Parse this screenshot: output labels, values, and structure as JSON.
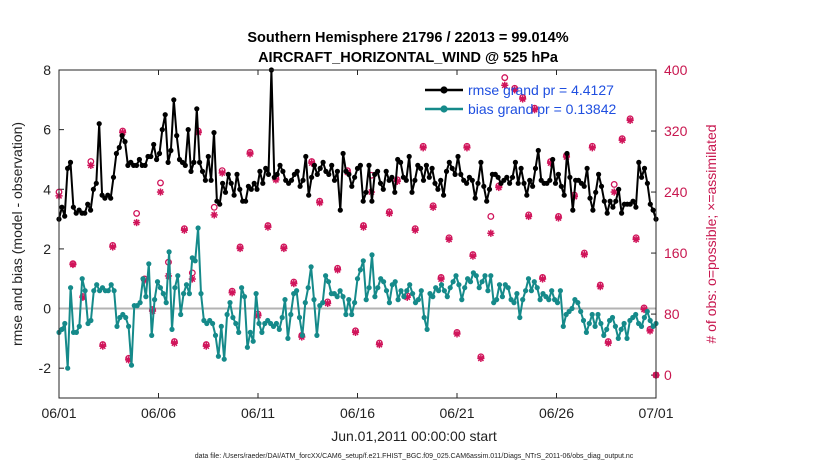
{
  "chart_data": {
    "type": "line",
    "title_line1": "Southern Hemisphere 21796 / 22013 = 99.014%",
    "title_line2": "AIRCRAFT_HORIZONTAL_WIND @ 525 hPa",
    "xlabel": "Jun.01,2011 00:00:00 start",
    "ylabel_left": "rmse and bias (model - observation)",
    "ylabel_right": "# of obs: o=possible; ×=assimilated",
    "footnote": "data file: /Users/raeder/DAI/ATM_forcXX/CAM6_setup/f.e21.FHIST_BGC.f09_025.CAM6assim.011/Diags_NTrS_2011-06/obs_diag_output.nc",
    "x_range_days": [
      0,
      30
    ],
    "ylim_left": [
      -3,
      8
    ],
    "ylim_right": [
      -30,
      400
    ],
    "yticks_left": [
      "-2",
      "0",
      "2",
      "4",
      "6",
      "8"
    ],
    "yticks_right": [
      "0",
      "80",
      "160",
      "240",
      "320",
      "400"
    ],
    "xticks": [
      {
        "day": 0,
        "label": "06/01"
      },
      {
        "day": 5,
        "label": "06/06"
      },
      {
        "day": 10,
        "label": "06/11"
      },
      {
        "day": 15,
        "label": "06/16"
      },
      {
        "day": 20,
        "label": "06/21"
      },
      {
        "day": 25,
        "label": "06/26"
      },
      {
        "day": 30,
        "label": "07/01"
      }
    ],
    "colors": {
      "rmse": "#000000",
      "bias": "#158a8a",
      "obs": "#d0145a",
      "zero_line": "#b3b3b3",
      "legend_text": "#1f4fe0"
    },
    "series": [
      {
        "name": "rmse grand pr = 4.4127",
        "values": [
          3.0,
          3.4,
          3.1,
          4.7,
          4.9,
          3.4,
          3.2,
          3.3,
          3.2,
          3.2,
          3.5,
          3.3,
          4.0,
          4.2,
          6.2,
          3.8,
          3.7,
          3.8,
          3.7,
          4.4,
          5.2,
          5.4,
          5.8,
          5.6,
          4.8,
          4.9,
          4.8,
          4.8,
          5.0,
          4.8,
          4.8,
          5.1,
          5.1,
          5.5,
          5.0,
          5.2,
          6.0,
          6.5,
          4.9,
          5.3,
          7.0,
          5.8,
          5.0,
          4.9,
          4.8,
          6.0,
          4.6,
          4.9,
          6.7,
          4.9,
          4.6,
          4.3,
          5.1,
          4.3,
          5.9,
          3.6,
          3.5,
          4.2,
          3.9,
          4.5,
          4.2,
          3.8,
          4.5,
          4.0,
          3.6,
          3.6,
          4.1,
          4.0,
          4.2,
          4.0,
          4.6,
          4.2,
          4.7,
          4.5,
          8.0,
          4.4,
          4.5,
          4.8,
          4.6,
          4.3,
          4.2,
          4.3,
          4.5,
          4.6,
          4.1,
          4.3,
          5.1,
          3.8,
          4.4,
          4.8,
          4.5,
          4.7,
          4.9,
          4.6,
          4.5,
          4.8,
          4.3,
          4.6,
          3.3,
          5.2,
          4.6,
          4.5,
          4.1,
          4.4,
          4.7,
          4.8,
          3.6,
          3.9,
          4.8,
          3.6,
          4.5,
          4.6,
          4.2,
          4.0,
          4.6,
          4.3,
          4.4,
          3.9,
          5.0,
          4.9,
          4.4,
          4.3,
          5.1,
          3.9,
          4.3,
          4.8,
          4.7,
          4.3,
          4.8,
          4.4,
          4.7,
          4.2,
          4.0,
          4.3,
          3.8,
          4.6,
          4.9,
          4.7,
          4.5,
          5.1,
          4.5,
          4.3,
          4.2,
          4.4,
          4.3,
          3.7,
          4.2,
          4.9,
          4.1,
          3.6,
          4.0,
          4.5,
          4.5,
          4.4,
          4.2,
          4.3,
          4.4,
          4.2,
          4.4,
          4.9,
          4.2,
          4.7,
          4.2,
          3.8,
          4.3,
          4.1,
          4.7,
          5.3,
          4.3,
          4.2,
          4.2,
          4.3,
          5.0,
          4.2,
          4.5,
          4.1,
          3.8,
          5.2,
          4.4,
          3.3,
          4.3,
          4.3,
          4.2,
          4.1,
          4.7,
          3.7,
          3.3,
          3.9,
          4.5,
          4.1,
          3.6,
          3.2,
          3.6,
          3.4,
          3.6,
          4.0,
          3.2,
          3.5,
          3.5,
          3.5,
          3.6,
          3.4,
          4.9,
          4.4,
          4.7,
          4.2,
          3.5,
          3.3,
          3.0
        ]
      },
      {
        "name": "bias grand pr = 0.13842",
        "values": [
          -0.8,
          -0.7,
          -0.5,
          -2.0,
          0.7,
          -0.8,
          -0.8,
          -0.6,
          1.0,
          0.6,
          -0.5,
          -0.4,
          0.6,
          0.8,
          0.6,
          0.7,
          0.6,
          0.6,
          0.8,
          0.6,
          -0.6,
          -0.3,
          -0.2,
          -0.3,
          -0.6,
          -1.9,
          0.1,
          0.1,
          0.2,
          1.0,
          0.4,
          1.5,
          -0.9,
          0.3,
          0.9,
          0.7,
          0.5,
          0.2,
          1.9,
          -0.7,
          0.7,
          1.1,
          -0.2,
          0.5,
          0.8,
          0.5,
          1.7,
          1.6,
          2.7,
          0.5,
          -0.4,
          -0.5,
          -0.4,
          -0.5,
          -0.9,
          -1.6,
          -0.6,
          -1.7,
          -0.2,
          0.2,
          -0.3,
          -0.5,
          -0.8,
          0.7,
          0.4,
          -1.3,
          -0.8,
          -1.1,
          0.5,
          -0.5,
          -0.8,
          -0.5,
          -0.4,
          -0.5,
          -0.6,
          -0.5,
          -0.7,
          -0.3,
          0.3,
          -1.0,
          -0.2,
          0.5,
          0.6,
          -0.3,
          -0.9,
          0.2,
          0.7,
          1.4,
          0.3,
          -0.9,
          0.1,
          0.2,
          1.1,
          0.9,
          0.5,
          0.5,
          0.4,
          0.6,
          0.4,
          -0.2,
          0.3,
          -0.2,
          0.2,
          1.0,
          1.3,
          1.6,
          0.3,
          0.7,
          1.8,
          0.4,
          0.7,
          1.0,
          0.9,
          0.6,
          0.2,
          0.8,
          0.9,
          0.3,
          0.6,
          0.4,
          0.6,
          0.8,
          0.5,
          0.2,
          0.3,
          0.6,
          -0.3,
          -0.7,
          0.5,
          0.4,
          0.7,
          0.6,
          0.8,
          0.6,
          0.4,
          0.7,
          0.9,
          1.1,
          0.8,
          0.3,
          0.7,
          1.0,
          0.9,
          1.2,
          1.1,
          0.7,
          0.9,
          1.1,
          0.6,
          1.1,
          0.2,
          0.3,
          0.8,
          0.4,
          0.8,
          0.7,
          0.3,
          0.2,
          0.5,
          -0.3,
          0.3,
          0.6,
          1.0,
          0.6,
          0.9,
          0.7,
          0.3,
          0.5,
          0.4,
          0.3,
          0.6,
          0.3,
          0.2,
          0.6,
          -0.6,
          -0.2,
          -0.1,
          0.0,
          0.3,
          0.2,
          -0.1,
          -0.4,
          -0.8,
          -0.5,
          -0.2,
          -0.6,
          -0.2,
          -0.5,
          -0.9,
          -0.7,
          -0.4,
          -0.3,
          -0.6,
          -1.0,
          -0.7,
          -0.5,
          -1.0,
          -0.4,
          -0.3,
          -0.2,
          -0.5,
          -0.6,
          -0.3,
          -0.1,
          -0.4,
          -0.6,
          -0.5
        ]
      }
    ],
    "obs_counts": [
      {
        "day": 0.0,
        "possible": 240,
        "assimilated": 235
      },
      {
        "day": 0.7,
        "possible": 146,
        "assimilated": 145
      },
      {
        "day": 1.2,
        "possible": 103,
        "assimilated": 102
      },
      {
        "day": 1.6,
        "possible": 280,
        "assimilated": 275
      },
      {
        "day": 2.2,
        "possible": 40,
        "assimilated": 38
      },
      {
        "day": 2.7,
        "possible": 170,
        "assimilated": 168
      },
      {
        "day": 3.2,
        "possible": 320,
        "assimilated": 318
      },
      {
        "day": 3.5,
        "possible": 22,
        "assimilated": 20
      },
      {
        "day": 3.9,
        "possible": 212,
        "assimilated": 200
      },
      {
        "day": 4.3,
        "possible": 126,
        "assimilated": 124
      },
      {
        "day": 4.7,
        "possible": 86,
        "assimilated": 84
      },
      {
        "day": 5.1,
        "possible": 252,
        "assimilated": 240
      },
      {
        "day": 5.5,
        "possible": 148,
        "assimilated": 130
      },
      {
        "day": 5.8,
        "possible": 44,
        "assimilated": 42
      },
      {
        "day": 6.3,
        "possible": 192,
        "assimilated": 190
      },
      {
        "day": 6.7,
        "possible": 134,
        "assimilated": 126
      },
      {
        "day": 7.0,
        "possible": 320,
        "assimilated": 318
      },
      {
        "day": 7.4,
        "possible": 40,
        "assimilated": 38
      },
      {
        "day": 7.8,
        "possible": 220,
        "assimilated": 210
      },
      {
        "day": 8.2,
        "possible": 268,
        "assimilated": 265
      },
      {
        "day": 8.7,
        "possible": 110,
        "assimilated": 108
      },
      {
        "day": 9.1,
        "possible": 168,
        "assimilated": 166
      },
      {
        "day": 9.6,
        "possible": 292,
        "assimilated": 290
      },
      {
        "day": 10.0,
        "possible": 80,
        "assimilated": 78
      },
      {
        "day": 10.5,
        "possible": 196,
        "assimilated": 194
      },
      {
        "day": 10.9,
        "possible": 258,
        "assimilated": 256
      },
      {
        "day": 11.3,
        "possible": 168,
        "assimilated": 166
      },
      {
        "day": 11.8,
        "possible": 122,
        "assimilated": 120
      },
      {
        "day": 12.2,
        "possible": 52,
        "assimilated": 50
      },
      {
        "day": 12.7,
        "possible": 280,
        "assimilated": 278
      },
      {
        "day": 13.1,
        "possible": 228,
        "assimilated": 226
      },
      {
        "day": 13.5,
        "possible": 96,
        "assimilated": 94
      },
      {
        "day": 14.0,
        "possible": 140,
        "assimilated": 138
      },
      {
        "day": 14.5,
        "possible": 268,
        "assimilated": 266
      },
      {
        "day": 14.9,
        "possible": 58,
        "assimilated": 56
      },
      {
        "day": 15.3,
        "possible": 196,
        "assimilated": 194
      },
      {
        "day": 15.7,
        "possible": 262,
        "assimilated": 240
      },
      {
        "day": 16.1,
        "possible": 42,
        "assimilated": 40
      },
      {
        "day": 16.6,
        "possible": 214,
        "assimilated": 212
      },
      {
        "day": 17.0,
        "possible": 256,
        "assimilated": 254
      },
      {
        "day": 17.5,
        "possible": 104,
        "assimilated": 102
      },
      {
        "day": 17.9,
        "possible": 192,
        "assimilated": 190
      },
      {
        "day": 18.3,
        "possible": 300,
        "assimilated": 298
      },
      {
        "day": 18.8,
        "possible": 222,
        "assimilated": 220
      },
      {
        "day": 19.2,
        "possible": 128,
        "assimilated": 126
      },
      {
        "day": 19.6,
        "possible": 180,
        "assimilated": 178
      },
      {
        "day": 20.0,
        "possible": 56,
        "assimilated": 54
      },
      {
        "day": 20.5,
        "possible": 300,
        "assimilated": 298
      },
      {
        "day": 20.8,
        "possible": 158,
        "assimilated": 156
      },
      {
        "day": 21.2,
        "possible": 24,
        "assimilated": 22
      },
      {
        "day": 21.7,
        "possible": 208,
        "assimilated": 186
      },
      {
        "day": 22.1,
        "possible": 248,
        "assimilated": 246
      },
      {
        "day": 22.4,
        "possible": 390,
        "assimilated": 380
      },
      {
        "day": 22.9,
        "possible": 376,
        "assimilated": 374
      },
      {
        "day": 23.3,
        "possible": 364,
        "assimilated": 362
      },
      {
        "day": 23.6,
        "possible": 210,
        "assimilated": 208
      },
      {
        "day": 23.9,
        "possible": 350,
        "assimilated": 348
      },
      {
        "day": 24.3,
        "possible": 128,
        "assimilated": 126
      },
      {
        "day": 24.7,
        "possible": 280,
        "assimilated": 278
      },
      {
        "day": 25.1,
        "possible": 208,
        "assimilated": 206
      },
      {
        "day": 25.5,
        "possible": 288,
        "assimilated": 286
      },
      {
        "day": 25.9,
        "possible": 236,
        "assimilated": 234
      },
      {
        "day": 26.4,
        "possible": 160,
        "assimilated": 158
      },
      {
        "day": 26.8,
        "possible": 300,
        "assimilated": 298
      },
      {
        "day": 27.2,
        "possible": 118,
        "assimilated": 116
      },
      {
        "day": 27.6,
        "possible": 44,
        "assimilated": 42
      },
      {
        "day": 27.9,
        "possible": 250,
        "assimilated": 240
      },
      {
        "day": 28.3,
        "possible": 310,
        "assimilated": 308
      },
      {
        "day": 28.7,
        "possible": 336,
        "assimilated": 334
      },
      {
        "day": 29.0,
        "possible": 180,
        "assimilated": 178
      },
      {
        "day": 29.4,
        "possible": 88,
        "assimilated": 86
      },
      {
        "day": 29.7,
        "possible": 60,
        "assimilated": 58
      },
      {
        "day": 30.0,
        "possible": 0,
        "assimilated": 0
      }
    ]
  }
}
